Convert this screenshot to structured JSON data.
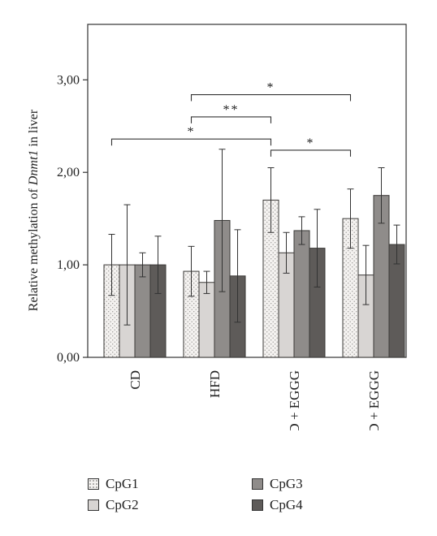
{
  "chart_data": {
    "type": "bar",
    "ylabel_pre": "Relative methylation of ",
    "ylabel_italic": "Dnmt1",
    "ylabel_post": " in liver",
    "ylim": [
      0,
      3.6
    ],
    "yticks": [
      0,
      1,
      2,
      3
    ],
    "ytick_labels": [
      "0,00",
      "1,00",
      "2,00",
      "3,00"
    ],
    "categories": [
      "CD",
      "HFD",
      "CD + EGGG",
      "HFD + EGGG"
    ],
    "series": [
      {
        "name": "CpG1",
        "values": [
          1.0,
          0.93,
          1.7,
          1.5
        ],
        "errors": [
          0.33,
          0.27,
          0.35,
          0.32
        ],
        "fill": "#f2f0ee",
        "pattern": true
      },
      {
        "name": "CpG2",
        "values": [
          1.0,
          0.81,
          1.13,
          0.89
        ],
        "errors": [
          0.65,
          0.12,
          0.22,
          0.32
        ],
        "fill": "#d8d5d3",
        "pattern": false
      },
      {
        "name": "CpG3",
        "values": [
          1.0,
          1.48,
          1.37,
          1.75
        ],
        "errors": [
          0.13,
          0.77,
          0.15,
          0.3
        ],
        "fill": "#8f8c8a",
        "pattern": false
      },
      {
        "name": "CpG4",
        "values": [
          1.0,
          0.88,
          1.18,
          1.22
        ],
        "errors": [
          0.31,
          0.5,
          0.42,
          0.21
        ],
        "fill": "#5e5b59",
        "pattern": false
      }
    ],
    "significance": [
      {
        "from": "CD",
        "to": "CD + EGGG",
        "label": "*",
        "level": 2.36
      },
      {
        "from": "HFD",
        "to": "CD + EGGG",
        "label": "**",
        "level": 2.6
      },
      {
        "from": "HFD",
        "to": "HFD + EGGG",
        "label": "*",
        "level": 2.84
      },
      {
        "from": "CD + EGGG",
        "to": "HFD + EGGG",
        "label": "*",
        "level": 2.24
      }
    ],
    "legend_position": "bottom",
    "grid": false
  }
}
